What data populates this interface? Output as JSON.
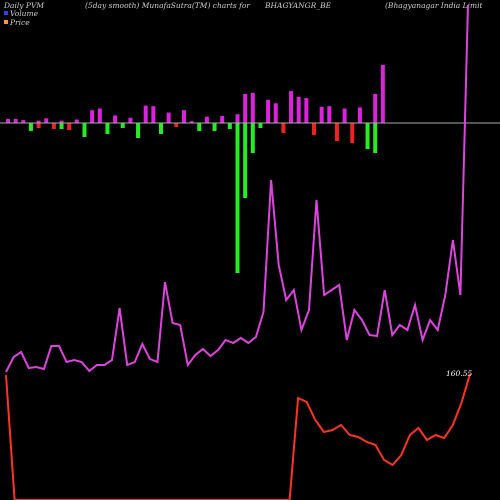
{
  "header": {
    "left": "Daily PVM",
    "smooth": "(5day smooth) MunafaSutra(TM) charts for",
    "symbol": "BHAGYANGR_BE",
    "company": "(Bhagyanagar India Limit"
  },
  "legend": {
    "volume_label": "Volume",
    "price_label": "Price",
    "volume_color": "#2244ff",
    "price_color": "#ff9933"
  },
  "colors": {
    "background": "#000000",
    "bar_up": "#dd22dd",
    "bar_green": "#22ee22",
    "bar_red": "#ee2222",
    "line_pvm": "#dd44dd",
    "line_price": "#ff3322",
    "baseline": "#aaaaaa"
  },
  "chart_data": {
    "type": "bar",
    "title": "",
    "last_price_label": "160.55",
    "up_bars": [
      7,
      7,
      5,
      0,
      4,
      8,
      0,
      4,
      0,
      6,
      0,
      22,
      25,
      0,
      13,
      0,
      9,
      0,
      30,
      29,
      0,
      18,
      0,
      22,
      3,
      0,
      11,
      0,
      12,
      0,
      15,
      50,
      52,
      0,
      40,
      34,
      0,
      55,
      45,
      43,
      0,
      28,
      29,
      0,
      25,
      0,
      27,
      0,
      50,
      100
    ],
    "down_bars": [
      0,
      0,
      0,
      8,
      5,
      0,
      6,
      6,
      7,
      0,
      14,
      0,
      0,
      11,
      0,
      5,
      0,
      15,
      0,
      0,
      11,
      0,
      4,
      0,
      0,
      8,
      0,
      8,
      0,
      6,
      150,
      75,
      30,
      5,
      0,
      0,
      10,
      0,
      0,
      0,
      12,
      0,
      0,
      18,
      0,
      20,
      0,
      26,
      30,
      0
    ],
    "down_colors": [
      "",
      "",
      "",
      "green",
      "red",
      "",
      "red",
      "green",
      "red",
      "",
      "green",
      "",
      "",
      "green",
      "",
      "green",
      "",
      "green",
      "",
      "",
      "green",
      "",
      "red",
      "",
      "",
      "green",
      "",
      "green",
      "",
      "green",
      "green",
      "green",
      "green",
      "green",
      "",
      "",
      "red",
      "",
      "",
      "",
      "red",
      "",
      "",
      "red",
      "",
      "red",
      "",
      "green",
      "green",
      ""
    ],
    "pvm_line": [
      372,
      357,
      352,
      368,
      367,
      369,
      346,
      346,
      362,
      360,
      362,
      371,
      365,
      365,
      360,
      308,
      365,
      362,
      344,
      359,
      362,
      282,
      323,
      325,
      365,
      355,
      349,
      356,
      350,
      340,
      343,
      338,
      343,
      337,
      312,
      180,
      265,
      300,
      290,
      330,
      310,
      200,
      295,
      290,
      285,
      340,
      310,
      320,
      335,
      336,
      290,
      335,
      325,
      330,
      305,
      340,
      320,
      330,
      295,
      240,
      295,
      5
    ],
    "price_line": [
      375,
      500,
      500,
      500,
      500,
      500,
      500,
      500,
      500,
      500,
      500,
      500,
      500,
      500,
      500,
      500,
      500,
      500,
      500,
      500,
      500,
      500,
      500,
      500,
      500,
      500,
      500,
      500,
      500,
      500,
      500,
      500,
      500,
      500,
      398,
      402,
      420,
      432,
      430,
      425,
      435,
      437,
      442,
      445,
      460,
      465,
      455,
      435,
      428,
      440,
      435,
      438,
      425,
      403,
      374
    ]
  }
}
